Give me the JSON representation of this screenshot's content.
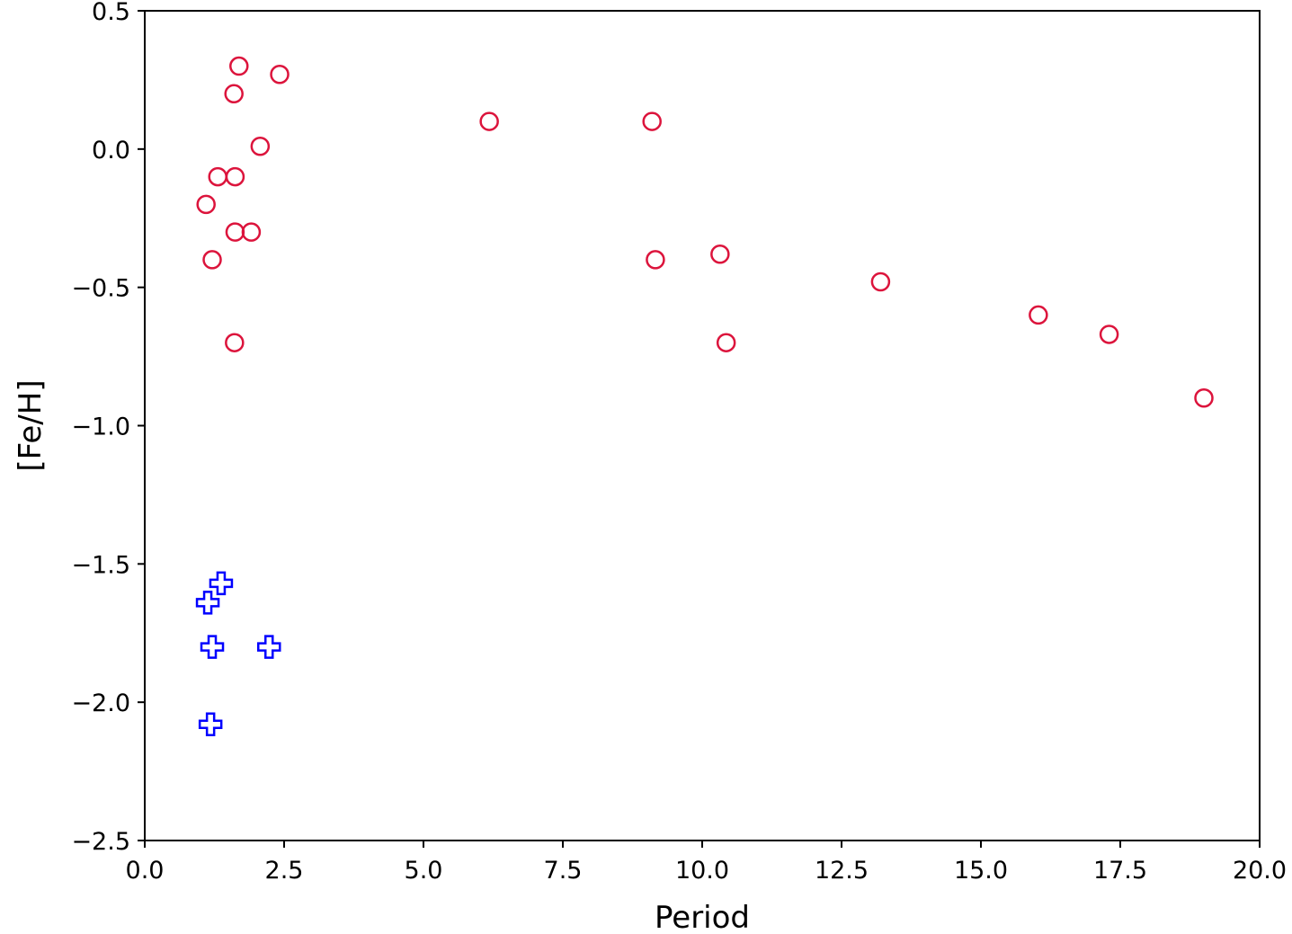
{
  "chart_data": {
    "type": "scatter",
    "title": "",
    "xlabel": "Period",
    "ylabel": "[Fe/H]",
    "xlim": [
      0.0,
      20.0
    ],
    "ylim": [
      -2.5,
      0.5
    ],
    "xticks": [
      "0.0",
      "2.5",
      "5.0",
      "7.5",
      "10.0",
      "12.5",
      "15.0",
      "17.5",
      "20.0"
    ],
    "yticks": [
      "0.5",
      "0.0",
      "−0.5",
      "−1.0",
      "−1.5",
      "−2.0",
      "−2.5"
    ],
    "grid": false,
    "legend": "none",
    "series": [
      {
        "marker": "open-circle",
        "color": "#dc143c",
        "points": [
          {
            "x": 1.69,
            "y": 0.3
          },
          {
            "x": 2.42,
            "y": 0.27
          },
          {
            "x": 1.6,
            "y": 0.2
          },
          {
            "x": 6.18,
            "y": 0.1
          },
          {
            "x": 9.1,
            "y": 0.1
          },
          {
            "x": 2.07,
            "y": 0.01
          },
          {
            "x": 1.31,
            "y": -0.1
          },
          {
            "x": 1.62,
            "y": -0.1
          },
          {
            "x": 1.1,
            "y": -0.2
          },
          {
            "x": 1.62,
            "y": -0.3
          },
          {
            "x": 1.91,
            "y": -0.3
          },
          {
            "x": 10.32,
            "y": -0.38
          },
          {
            "x": 1.21,
            "y": -0.4
          },
          {
            "x": 9.16,
            "y": -0.4
          },
          {
            "x": 13.2,
            "y": -0.48
          },
          {
            "x": 16.03,
            "y": -0.6
          },
          {
            "x": 17.3,
            "y": -0.67
          },
          {
            "x": 1.61,
            "y": -0.7
          },
          {
            "x": 10.43,
            "y": -0.7
          },
          {
            "x": 19.0,
            "y": -0.9
          }
        ]
      },
      {
        "marker": "open-plus",
        "color": "#0000ff",
        "points": [
          {
            "x": 1.37,
            "y": -1.57
          },
          {
            "x": 1.13,
            "y": -1.64
          },
          {
            "x": 1.21,
            "y": -1.8
          },
          {
            "x": 2.23,
            "y": -1.8
          },
          {
            "x": 1.18,
            "y": -2.08
          }
        ]
      }
    ]
  }
}
